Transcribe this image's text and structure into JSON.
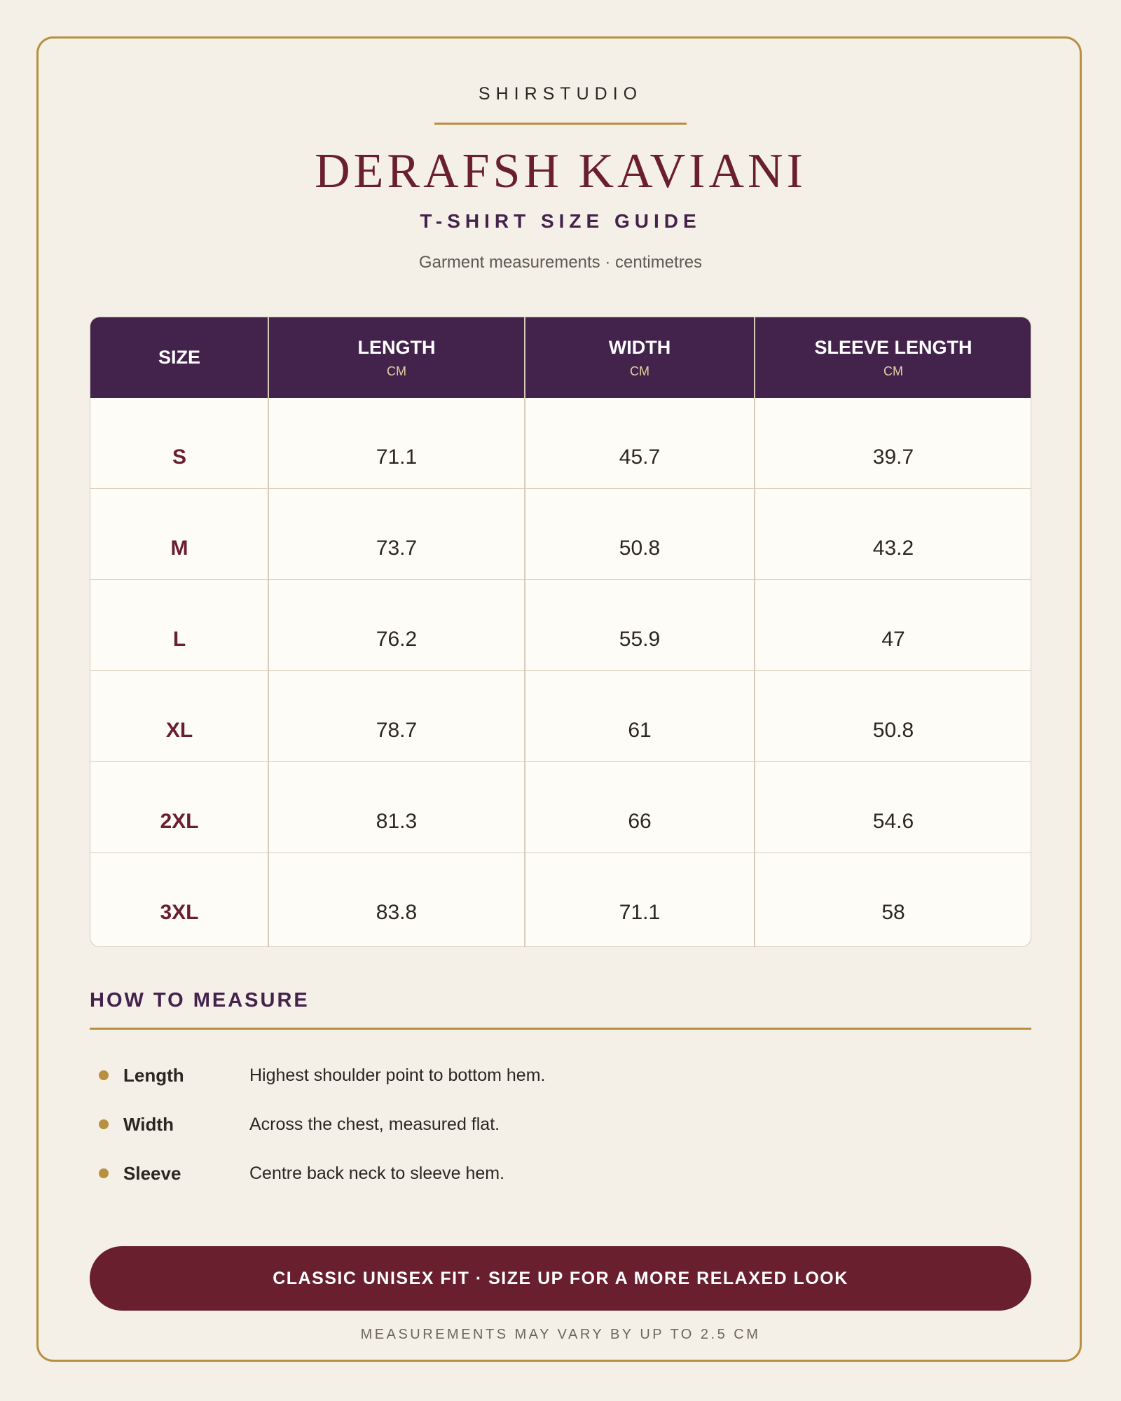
{
  "header": {
    "brand": "SHIRSTUDIO",
    "title": "DERAFSH KAVIANI",
    "subtitle": "T-SHIRT SIZE GUIDE",
    "note": "Garment measurements · centimetres"
  },
  "table": {
    "columns": [
      {
        "label": "SIZE"
      },
      {
        "label": "LENGTH",
        "unit": "CM"
      },
      {
        "label": "WIDTH",
        "unit": "CM"
      },
      {
        "label": "SLEEVE LENGTH",
        "unit": "CM"
      }
    ],
    "rows": [
      [
        "S",
        71.1,
        45.7,
        39.7
      ],
      [
        "M",
        73.7,
        50.8,
        43.2
      ],
      [
        "L",
        76.2,
        55.9,
        47
      ],
      [
        "XL",
        78.7,
        61,
        50.8
      ],
      [
        "2XL",
        81.3,
        66,
        54.6
      ],
      [
        "3XL",
        83.8,
        71.1,
        58
      ]
    ]
  },
  "how_to_measure": {
    "title": "HOW TO MEASURE",
    "items": [
      {
        "term": "Length",
        "description": "Highest shoulder point to bottom hem."
      },
      {
        "term": "Width",
        "description": "Across the chest, measured flat."
      },
      {
        "term": "Sleeve",
        "description": "Centre back neck to sleeve hem."
      }
    ]
  },
  "banner": "CLASSIC UNISEX FIT · SIZE UP FOR A MORE RELAXED LOOK",
  "footnote": "MEASUREMENTS MAY VARY BY UP TO 2.5 CM"
}
